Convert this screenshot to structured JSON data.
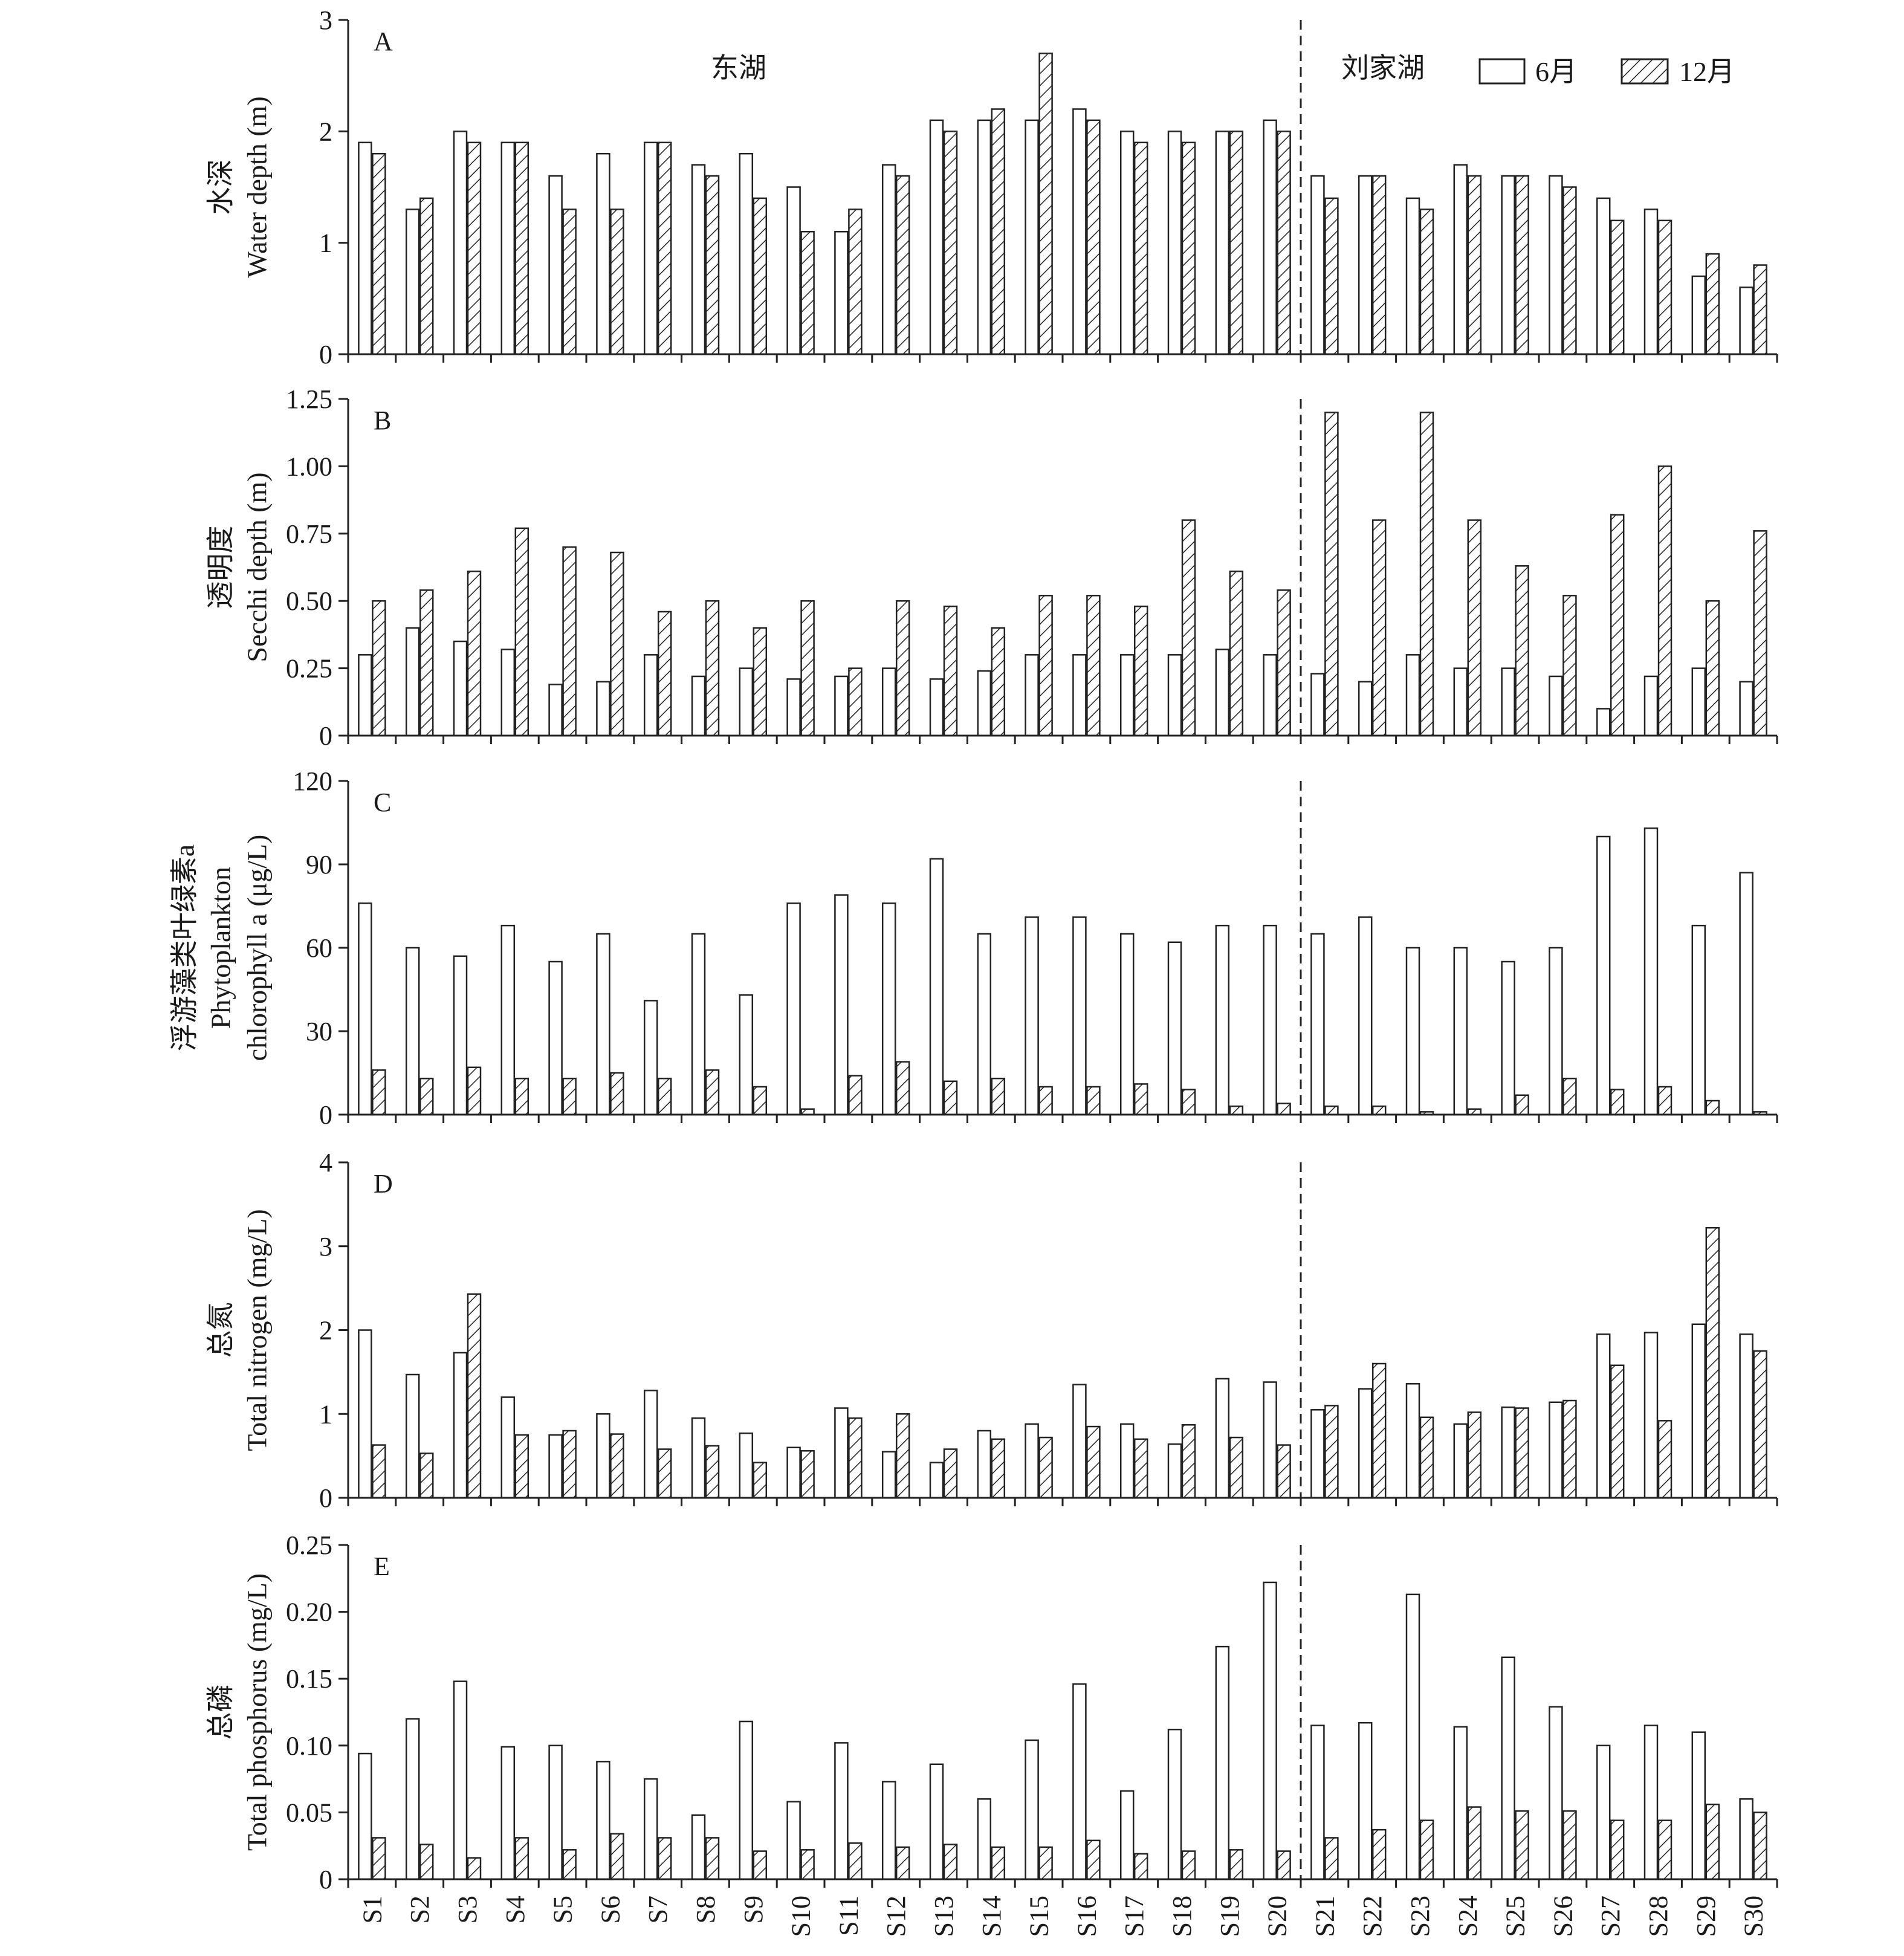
{
  "chart_data": {
    "type": "bar",
    "categories": [
      "S1",
      "S2",
      "S3",
      "S4",
      "S5",
      "S6",
      "S7",
      "S8",
      "S9",
      "S10",
      "S11",
      "S12",
      "S13",
      "S14",
      "S15",
      "S16",
      "S17",
      "S18",
      "S19",
      "S20",
      "S21",
      "S22",
      "S23",
      "S24",
      "S25",
      "S26",
      "S27",
      "S28",
      "S29",
      "S30"
    ],
    "legend": {
      "placement": "top-right",
      "entries": [
        "6月",
        "12月"
      ]
    },
    "group_divider_after": "S20",
    "groups": [
      {
        "label": "东湖"
      },
      {
        "label": "刘家湖"
      }
    ],
    "panels": [
      {
        "letter": "A",
        "ylabel": [
          "水深",
          "Water depth (m)"
        ],
        "ylim": [
          0,
          3
        ],
        "ticks": [
          0,
          1,
          2,
          3
        ],
        "tick_labels": [
          "0",
          "1",
          "2",
          "3"
        ],
        "series": [
          {
            "name": "6月",
            "values": [
              1.9,
              1.3,
              2.0,
              1.9,
              1.6,
              1.8,
              1.9,
              1.7,
              1.8,
              1.5,
              1.1,
              1.7,
              2.1,
              2.1,
              2.1,
              2.2,
              2.0,
              2.0,
              2.0,
              2.1,
              1.6,
              1.6,
              1.4,
              1.7,
              1.6,
              1.6,
              1.4,
              1.3,
              0.7,
              0.6
            ]
          },
          {
            "name": "12月",
            "values": [
              1.8,
              1.4,
              1.9,
              1.9,
              1.3,
              1.3,
              1.9,
              1.6,
              1.4,
              1.1,
              1.3,
              1.6,
              2.0,
              2.2,
              2.7,
              2.1,
              1.9,
              1.9,
              2.0,
              2.0,
              1.4,
              1.6,
              1.3,
              1.6,
              1.6,
              1.5,
              1.2,
              1.2,
              0.9,
              0.8
            ]
          }
        ]
      },
      {
        "letter": "B",
        "ylabel": [
          "透明度",
          "Secchi depth (m)"
        ],
        "ylim": [
          0,
          1.25
        ],
        "ticks": [
          0,
          0.25,
          0.5,
          0.75,
          1.0,
          1.25
        ],
        "tick_labels": [
          "0",
          "0.25",
          "0.50",
          "0.75",
          "1.00",
          "1.25"
        ],
        "series": [
          {
            "name": "6月",
            "values": [
              0.3,
              0.4,
              0.35,
              0.32,
              0.19,
              0.2,
              0.3,
              0.22,
              0.25,
              0.21,
              0.22,
              0.25,
              0.21,
              0.24,
              0.3,
              0.3,
              0.3,
              0.3,
              0.32,
              0.3,
              0.23,
              0.2,
              0.3,
              0.25,
              0.25,
              0.22,
              0.1,
              0.22,
              0.25,
              0.2
            ]
          },
          {
            "name": "12月",
            "values": [
              0.5,
              0.54,
              0.61,
              0.77,
              0.7,
              0.68,
              0.46,
              0.5,
              0.4,
              0.5,
              0.25,
              0.5,
              0.48,
              0.4,
              0.52,
              0.52,
              0.48,
              0.8,
              0.61,
              0.54,
              1.2,
              0.8,
              1.2,
              0.8,
              0.63,
              0.52,
              0.82,
              1.0,
              0.5,
              0.76
            ]
          }
        ]
      },
      {
        "letter": "C",
        "ylabel": [
          "浮游藻类叶绿素a",
          "Phytoplankton",
          "chlorophyll a (μg/L)"
        ],
        "ylim": [
          0,
          120
        ],
        "ticks": [
          0,
          30,
          60,
          90,
          120
        ],
        "tick_labels": [
          "0",
          "30",
          "60",
          "90",
          "120"
        ],
        "series": [
          {
            "name": "6月",
            "values": [
              76,
              60,
              57,
              68,
              55,
              65,
              41,
              65,
              43,
              76,
              79,
              76,
              92,
              65,
              71,
              71,
              65,
              62,
              68,
              68,
              65,
              71,
              60,
              60,
              55,
              60,
              100,
              103,
              68,
              87
            ]
          },
          {
            "name": "12月",
            "values": [
              16,
              13,
              17,
              13,
              13,
              15,
              13,
              16,
              10,
              2,
              14,
              19,
              12,
              13,
              10,
              10,
              11,
              9,
              3,
              4,
              3,
              3,
              1,
              2,
              7,
              13,
              9,
              10,
              5,
              1
            ]
          }
        ]
      },
      {
        "letter": "D",
        "ylabel": [
          "总氮",
          "Total nitrogen (mg/L)"
        ],
        "ylim": [
          0,
          4
        ],
        "ticks": [
          0,
          1,
          2,
          3,
          4
        ],
        "tick_labels": [
          "0",
          "1",
          "2",
          "3",
          "4"
        ],
        "series": [
          {
            "name": "6月",
            "values": [
              2.0,
              1.47,
              1.73,
              1.2,
              0.75,
              1.0,
              1.28,
              0.95,
              0.77,
              0.6,
              1.07,
              0.55,
              0.42,
              0.8,
              0.88,
              1.35,
              0.88,
              0.64,
              1.42,
              1.38,
              1.05,
              1.3,
              1.36,
              0.88,
              1.08,
              1.14,
              1.95,
              1.97,
              2.07,
              1.95
            ]
          },
          {
            "name": "12月",
            "values": [
              0.63,
              0.53,
              2.43,
              0.75,
              0.8,
              0.76,
              0.58,
              0.62,
              0.42,
              0.56,
              0.95,
              1.0,
              0.58,
              0.7,
              0.72,
              0.85,
              0.7,
              0.87,
              0.72,
              0.63,
              1.1,
              1.6,
              0.96,
              1.02,
              1.07,
              1.16,
              1.58,
              0.92,
              3.22,
              1.75
            ]
          }
        ]
      },
      {
        "letter": "E",
        "ylabel": [
          "总磷",
          "Total phosphorus (mg/L)"
        ],
        "ylim": [
          0,
          0.25
        ],
        "ticks": [
          0,
          0.05,
          0.1,
          0.15,
          0.2,
          0.25
        ],
        "tick_labels": [
          "0",
          "0.05",
          "0.10",
          "0.15",
          "0.20",
          "0.25"
        ],
        "series": [
          {
            "name": "6月",
            "values": [
              0.094,
              0.12,
              0.148,
              0.099,
              0.1,
              0.088,
              0.075,
              0.048,
              0.118,
              0.058,
              0.102,
              0.073,
              0.086,
              0.06,
              0.104,
              0.146,
              0.066,
              0.112,
              0.174,
              0.222,
              0.115,
              0.117,
              0.213,
              0.114,
              0.166,
              0.129,
              0.1,
              0.115,
              0.11,
              0.06
            ]
          },
          {
            "name": "12月",
            "values": [
              0.031,
              0.026,
              0.016,
              0.031,
              0.022,
              0.034,
              0.031,
              0.031,
              0.021,
              0.022,
              0.027,
              0.024,
              0.026,
              0.024,
              0.024,
              0.029,
              0.019,
              0.021,
              0.022,
              0.021,
              0.031,
              0.037,
              0.044,
              0.054,
              0.051,
              0.051,
              0.044,
              0.044,
              0.056,
              0.05
            ]
          }
        ]
      }
    ]
  }
}
